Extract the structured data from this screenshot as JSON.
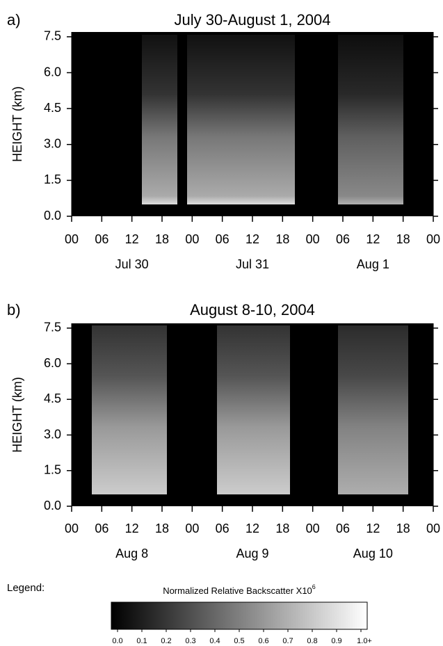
{
  "panels": [
    {
      "label": "a)",
      "title": "July 30-August 1, 2004",
      "y_label": "HEIGHT (km)",
      "ylim": [
        0,
        7.7
      ],
      "yticks": [
        {
          "value": 0,
          "label": "0.0"
        },
        1.5,
        {
          "value": 3,
          "label": "3.0"
        },
        4.5,
        {
          "value": 6,
          "label": "6.0"
        },
        7.5
      ],
      "xlim": [
        0,
        72
      ],
      "xticks": [
        {
          "value": 0,
          "label": "00"
        },
        {
          "value": 6,
          "label": "06"
        },
        12,
        18,
        {
          "value": 24,
          "label": "00"
        },
        {
          "value": 30,
          "label": "06"
        },
        {
          "value": 36,
          "label": "12"
        },
        {
          "value": 42,
          "label": "18"
        },
        {
          "value": 48,
          "label": "00"
        },
        {
          "value": 54,
          "label": "06"
        },
        {
          "value": 60,
          "label": "12"
        },
        {
          "value": 66,
          "label": "18"
        },
        {
          "value": 72,
          "label": "00"
        }
      ],
      "days": [
        "Jul 30",
        "Jul 31",
        "Aug 1"
      ]
    },
    {
      "label": "b)",
      "title": "August 8-10, 2004",
      "y_label": "HEIGHT (km)",
      "ylim": [
        0,
        7.7
      ],
      "yticks": [
        {
          "value": 0,
          "label": "0.0"
        },
        1.5,
        {
          "value": 3,
          "label": "3.0"
        },
        4.5,
        {
          "value": 6,
          "label": "6.0"
        },
        7.5
      ],
      "xlim": [
        0,
        72
      ],
      "xticks": [
        {
          "value": 0,
          "label": "00"
        },
        {
          "value": 6,
          "label": "06"
        },
        12,
        18,
        {
          "value": 24,
          "label": "00"
        },
        {
          "value": 30,
          "label": "06"
        },
        {
          "value": 36,
          "label": "12"
        },
        {
          "value": 42,
          "label": "18"
        },
        {
          "value": 48,
          "label": "00"
        },
        {
          "value": 54,
          "label": "06"
        },
        {
          "value": 60,
          "label": "12"
        },
        {
          "value": 66,
          "label": "18"
        },
        {
          "value": 72,
          "label": "00"
        }
      ],
      "days": [
        "Aug 8",
        "Aug 9",
        "Aug 10"
      ]
    }
  ],
  "legend": {
    "label": "Legend:",
    "title": "Normalized Relative Backscatter X10",
    "exponent": "6",
    "ticks": [
      {
        "value": 0,
        "label": "0.0"
      },
      0.1,
      0.2,
      0.3,
      0.4,
      0.5,
      0.6,
      0.7,
      0.8,
      0.9,
      {
        "value": 1,
        "label": "1.0+"
      }
    ]
  }
}
